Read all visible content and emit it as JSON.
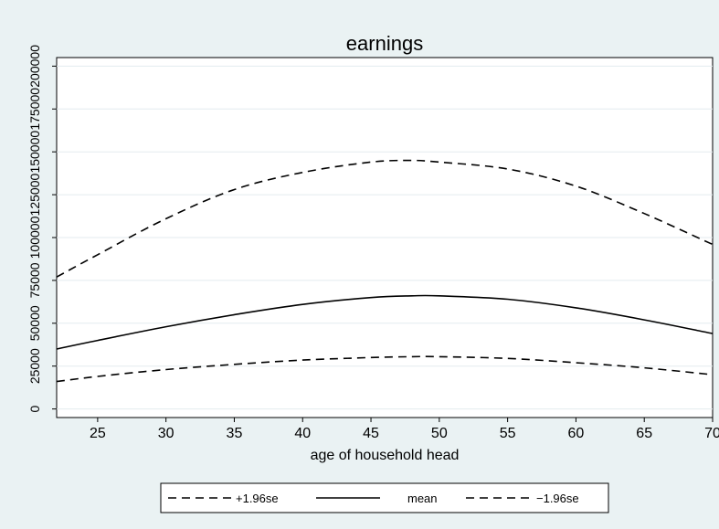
{
  "chart_data": {
    "type": "line",
    "title": "earnings",
    "xlabel": "age of household head",
    "ylabel": "",
    "xlim": [
      22,
      70
    ],
    "ylim": [
      -5000,
      205000
    ],
    "x_ticks": [
      25,
      30,
      35,
      40,
      45,
      50,
      55,
      60,
      65,
      70
    ],
    "y_ticks": [
      0,
      25000,
      50000,
      75000,
      100000,
      125000,
      150000,
      175000,
      200000
    ],
    "grid": true,
    "legend_position": "bottom",
    "x": [
      22,
      25,
      30,
      35,
      40,
      45,
      48,
      50,
      55,
      60,
      65,
      70
    ],
    "series": [
      {
        "name": "+1.96se",
        "style": "dashed",
        "color": "#000000",
        "values": [
          77000,
          90000,
          111000,
          128000,
          138000,
          144000,
          145000,
          144000,
          140000,
          130000,
          114000,
          96000
        ]
      },
      {
        "name": "mean",
        "style": "solid",
        "color": "#000000",
        "values": [
          35000,
          40000,
          48000,
          55000,
          61000,
          65000,
          66000,
          66000,
          64000,
          59000,
          52000,
          44000
        ]
      },
      {
        "name": "−1.96se",
        "style": "dashed",
        "color": "#000000",
        "values": [
          16000,
          19000,
          23000,
          26000,
          28500,
          30000,
          30500,
          30500,
          29500,
          27000,
          24000,
          20000
        ]
      }
    ]
  }
}
